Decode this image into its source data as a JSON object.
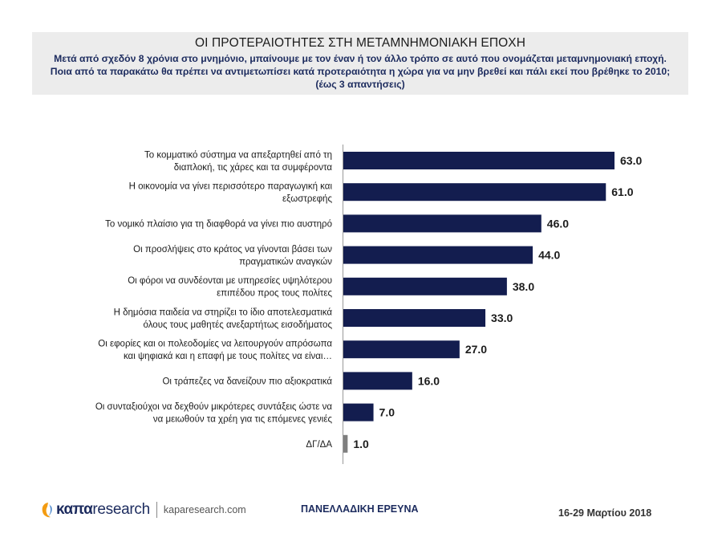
{
  "header": {
    "title": "ΟΙ ΠΡΟΤΕΡΑΙΟΤΗΤΕΣ ΣΤΗ ΜΕΤΑΜΝΗΜΟΝΙΑΚΗ ΕΠΟΧΗ",
    "subtitle": "Μετά από σχεδόν 8 χρόνια στο μνημόνιο, μπαίνουμε με τον έναν ή τον άλλο τρόπο σε αυτό που ονομάζεται μεταμνημονιακή εποχή. Ποια από τα παρακάτω θα πρέπει να αντιμετωπίσει κατά προτεραιότητα η χώρα για να μην βρεθεί και πάλι εκεί που βρέθηκε το 2010; (έως 3 απαντήσεις)"
  },
  "chart_data": {
    "type": "bar",
    "orientation": "horizontal",
    "title": "",
    "xlabel": "",
    "ylabel": "",
    "xlim": [
      0,
      63
    ],
    "grid": false,
    "legend": "none",
    "categories": [
      [
        "Το κομματικό σύστημα να απεξαρτηθεί από τη",
        "διαπλοκή, τις χάρες και τα συμφέροντα"
      ],
      [
        "Η οικονομία να γίνει περισσότερο παραγωγική και",
        "εξωστρεφής"
      ],
      [
        "Το νομικό πλαίσιο για τη διαφθορά να γίνει πιο αυστηρό"
      ],
      [
        "Οι προσλήψεις στο κράτος να γίνονται βάσει των",
        "πραγματικών αναγκών"
      ],
      [
        "Οι φόροι να συνδέονται με υπηρεσίες υψηλότερου",
        "επιπέδου προς τους πολίτες"
      ],
      [
        "Η δημόσια παιδεία να στηρίζει το ίδιο αποτελεσματικά",
        "όλους τους μαθητές ανεξαρτήτως εισοδήματος"
      ],
      [
        "Οι εφορίες και οι πολεοδομίες να λειτουργούν απρόσωπα",
        "και ψηφιακά και η επαφή με τους πολίτες να είναι…"
      ],
      [
        "Οι τράπεζες να δανείζουν πιο αξιοκρατικά"
      ],
      [
        "Οι συνταξιούχοι να δεχθούν μικρότερες συντάξεις ώστε να",
        "να μειωθούν τα χρέη για τις επόμενες γενιές"
      ],
      [
        "ΔΓ/ΔΑ"
      ]
    ],
    "values": [
      63.0,
      61.0,
      46.0,
      44.0,
      38.0,
      33.0,
      27.0,
      16.0,
      7.0,
      1.0
    ],
    "value_labels": [
      "63.0",
      "61.0",
      "46.0",
      "44.0",
      "38.0",
      "33.0",
      "27.0",
      "16.0",
      "7.0",
      "1.0"
    ],
    "colors": {
      "bar": "#131d4f",
      "bar_last": "#7f7f7f"
    }
  },
  "footer": {
    "logo_kapa": "καπα",
    "logo_research": "research",
    "url": "kaparesearch.com",
    "survey": "ΠΑΝΕΛΛΑΔΙΚΗ ΕΡΕΥΝΑ",
    "date": "16-29 Μαρτίου 2018"
  }
}
